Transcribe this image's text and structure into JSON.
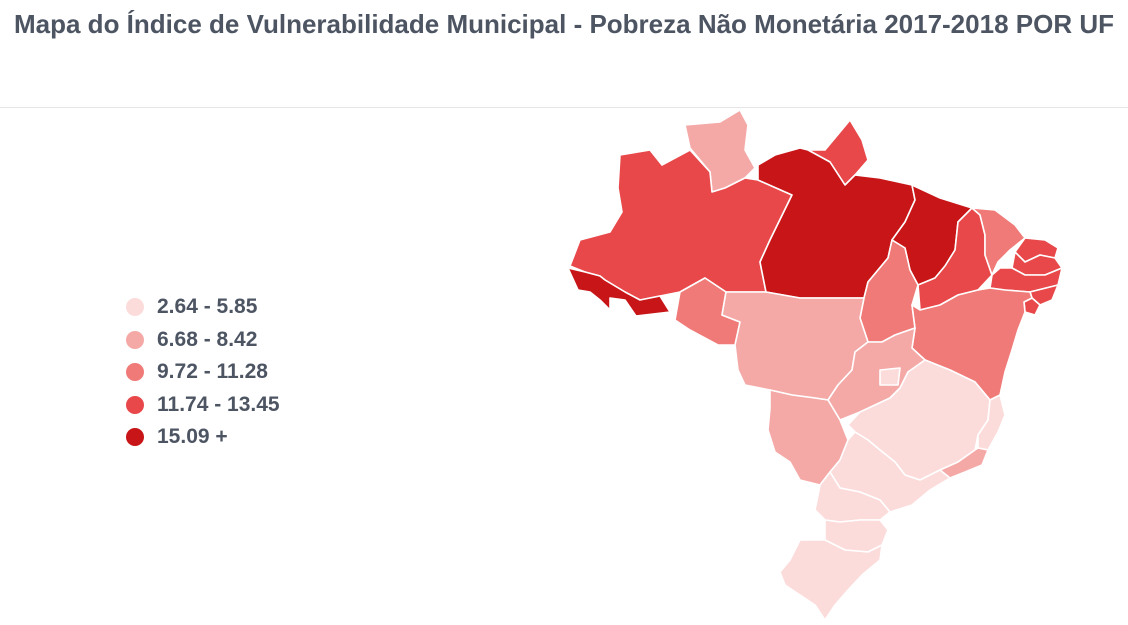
{
  "title": "Mapa do Índice de Vulnerabilidade Municipal - Pobreza Não Monetária  2017-2018 POR UF",
  "legend": {
    "items": [
      {
        "label": "2.64 - 5.85",
        "color": "#fcdcdb"
      },
      {
        "label": "6.68 - 8.42",
        "color": "#f4a9a7"
      },
      {
        "label": "9.72 - 11.28",
        "color": "#ef7a77"
      },
      {
        "label": "11.74 - 13.45",
        "color": "#e8484a"
      },
      {
        "label": "15.09 +",
        "color": "#c81517"
      }
    ]
  },
  "states": [
    {
      "uf": "RR",
      "class": 1
    },
    {
      "uf": "AP",
      "class": 3
    },
    {
      "uf": "AM",
      "class": 3
    },
    {
      "uf": "AC",
      "class": 4
    },
    {
      "uf": "PA",
      "class": 4
    },
    {
      "uf": "MA",
      "class": 4
    },
    {
      "uf": "RO",
      "class": 2
    },
    {
      "uf": "TO",
      "class": 2
    },
    {
      "uf": "PI",
      "class": 3
    },
    {
      "uf": "CE",
      "class": 2
    },
    {
      "uf": "RN",
      "class": 3
    },
    {
      "uf": "PB",
      "class": 3
    },
    {
      "uf": "PE",
      "class": 3
    },
    {
      "uf": "AL",
      "class": 3
    },
    {
      "uf": "SE",
      "class": 3
    },
    {
      "uf": "BA",
      "class": 2
    },
    {
      "uf": "MT",
      "class": 1
    },
    {
      "uf": "GO",
      "class": 1
    },
    {
      "uf": "DF",
      "class": 0
    },
    {
      "uf": "MS",
      "class": 1
    },
    {
      "uf": "MG",
      "class": 0
    },
    {
      "uf": "ES",
      "class": 0
    },
    {
      "uf": "RJ",
      "class": 1
    },
    {
      "uf": "SP",
      "class": 0
    },
    {
      "uf": "PR",
      "class": 0
    },
    {
      "uf": "SC",
      "class": 0
    },
    {
      "uf": "RS",
      "class": 0
    }
  ]
}
